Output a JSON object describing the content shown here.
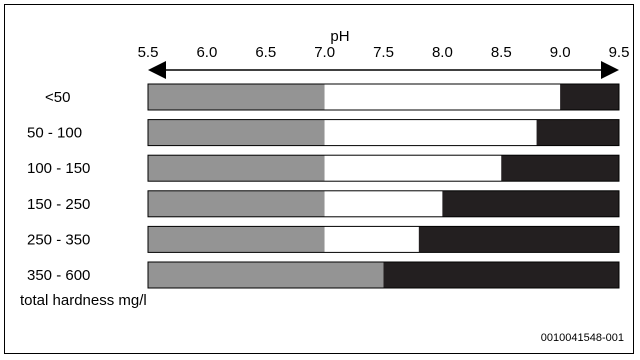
{
  "chart_data": {
    "type": "bar",
    "x_axis_title": "pH",
    "x_ticks": [
      "5.5",
      "6.0",
      "6.5",
      "7.0",
      "7.5",
      "8.0",
      "8.5",
      "9.0",
      "9.5"
    ],
    "xlim": [
      5.5,
      9.5
    ],
    "y_unit_label": "total hardness mg/l",
    "categories": [
      "<50",
      "50 - 100",
      "100 - 150",
      "150 - 250",
      "250 - 350",
      "350 - 600"
    ],
    "series": [
      {
        "values": [
          7.0,
          7.0,
          7.0,
          7.0,
          7.0,
          7.5
        ]
      },
      {
        "values": [
          9.0,
          8.8,
          8.5,
          8.0,
          7.8,
          7.5
        ]
      }
    ],
    "colors": {
      "gray": "#949494",
      "white": "#ffffff",
      "black": "#231f20"
    },
    "reference": "0010041548-001"
  }
}
